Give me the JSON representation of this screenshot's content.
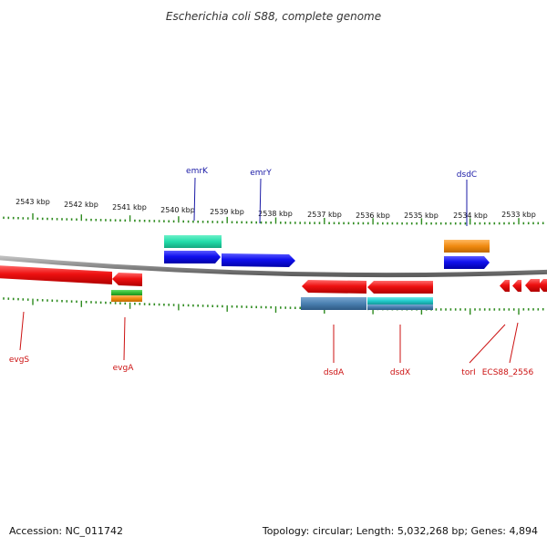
{
  "title": "Escherichia coli S88, complete genome",
  "footer": {
    "accession": "Accession: NC_011742",
    "summary": "Topology: circular; Length: 5,032,268 bp; Genes: 4,894"
  },
  "colors": {
    "backbone": "#8a8a8a",
    "ticks": "#2e8b1f",
    "forward_label": "#1a1aa6",
    "reverse_label": "#cc1111",
    "gene_red": "#ee1111",
    "gene_blue": "#1010ee",
    "gene_teal": "#22ddaa",
    "gene_cyan": "#22cccc",
    "gene_steel": "#4a80b0",
    "gene_orange": "#f08a10",
    "gene_green": "#33bb33"
  },
  "scale": {
    "labels": [
      "2543 kbp",
      "2542 kbp",
      "2541 kbp",
      "2540 kbp",
      "2539 kbp",
      "2538 kbp",
      "2537 kbp",
      "2536 kbp",
      "2535 kbp",
      "2534 kbp",
      "2533 kbp"
    ]
  },
  "genes": {
    "forward": [
      {
        "name": "emrK",
        "color": "gene_blue"
      },
      {
        "name": "emrY",
        "color": "gene_blue"
      },
      {
        "name": "dsdC",
        "color": "gene_blue"
      }
    ],
    "reverse": [
      {
        "name": "evgS",
        "color": "gene_red"
      },
      {
        "name": "evgA",
        "color": "gene_red"
      },
      {
        "name": "dsdA",
        "color": "gene_red"
      },
      {
        "name": "dsdX",
        "color": "gene_red"
      },
      {
        "name": "torI",
        "color": "gene_red"
      },
      {
        "name": "ECS88_2556",
        "color": "gene_red"
      }
    ]
  }
}
